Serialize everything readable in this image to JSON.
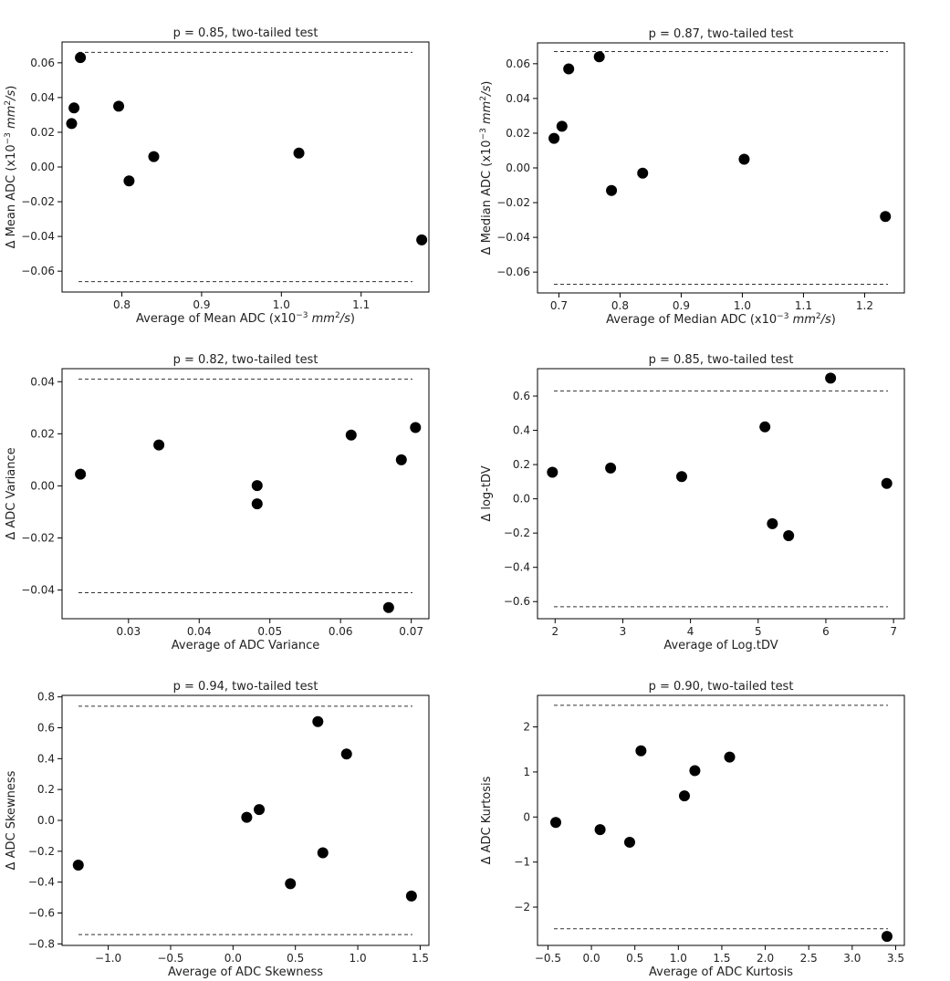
{
  "chart_data": [
    {
      "type": "scatter",
      "title": "p = 0.85, two-tailed test",
      "xlabel": "Average of Mean ADC (x10^-3 mm^2/s)",
      "ylabel": "Δ Mean ADC (x10^-3 mm^2/s)",
      "xlim": [
        0.725,
        1.185
      ],
      "ylim": [
        -0.072,
        0.072
      ],
      "xticks": [
        0.8,
        0.9,
        1.0,
        1.1
      ],
      "xtick_labels": [
        "0.8",
        "0.9",
        "1.0",
        "1.1"
      ],
      "yticks": [
        -0.06,
        -0.04,
        -0.02,
        0.0,
        0.02,
        0.04,
        0.06
      ],
      "ytick_labels": [
        "−0.06",
        "−0.04",
        "−0.02",
        "0.00",
        "0.02",
        "0.04",
        "0.06"
      ],
      "hlines": [
        0.066,
        -0.066
      ],
      "x": [
        0.737,
        0.74,
        0.748,
        0.796,
        0.809,
        0.84,
        1.022,
        1.176
      ],
      "y": [
        0.025,
        0.034,
        0.063,
        0.035,
        -0.008,
        0.006,
        0.008,
        -0.042
      ]
    },
    {
      "type": "scatter",
      "title": "p = 0.87, two-tailed test",
      "xlabel": "Average of Median ADC (x10^-3 mm^2/s)",
      "ylabel": "Δ Median ADC (x10^-3 mm^2/s)",
      "xlim": [
        0.665,
        1.265
      ],
      "ylim": [
        -0.072,
        0.072
      ],
      "xticks": [
        0.7,
        0.8,
        0.9,
        1.0,
        1.1,
        1.2
      ],
      "xtick_labels": [
        "0.7",
        "0.8",
        "0.9",
        "1.0",
        "1.1",
        "1.2"
      ],
      "yticks": [
        -0.06,
        -0.04,
        -0.02,
        0.0,
        0.02,
        0.04,
        0.06
      ],
      "ytick_labels": [
        "−0.06",
        "−0.04",
        "−0.02",
        "0.00",
        "0.02",
        "0.04",
        "0.06"
      ],
      "hlines": [
        0.067,
        -0.067
      ],
      "x": [
        0.692,
        0.705,
        0.716,
        0.766,
        0.786,
        0.837,
        1.003,
        1.234
      ],
      "y": [
        0.017,
        0.024,
        0.057,
        0.064,
        -0.013,
        -0.003,
        0.005,
        -0.028
      ]
    },
    {
      "type": "scatter",
      "title": "p = 0.82, two-tailed test",
      "xlabel": "Average of ADC Variance",
      "ylabel": "Δ ADC Variance",
      "xlim": [
        0.0206,
        0.0725
      ],
      "ylim": [
        -0.051,
        0.045
      ],
      "xticks": [
        0.03,
        0.04,
        0.05,
        0.06,
        0.07
      ],
      "xtick_labels": [
        "0.03",
        "0.04",
        "0.05",
        "0.06",
        "0.07"
      ],
      "yticks": [
        -0.04,
        -0.02,
        0.0,
        0.02,
        0.04
      ],
      "ytick_labels": [
        "−0.04",
        "−0.02",
        "0.00",
        "0.02",
        "0.04"
      ],
      "hlines": [
        0.041,
        -0.041
      ],
      "x": [
        0.0232,
        0.0343,
        0.0482,
        0.0482,
        0.0615,
        0.0668,
        0.0686,
        0.0706
      ],
      "y": [
        0.0045,
        0.0157,
        0.0001,
        -0.0069,
        0.0195,
        -0.0467,
        0.01,
        0.0224
      ]
    },
    {
      "type": "scatter",
      "title": "p = 0.85, two-tailed test",
      "xlabel": "Average of Log.tDV",
      "ylabel": "Δ log-tDV",
      "xlim": [
        1.74,
        7.16
      ],
      "ylim": [
        -0.7,
        0.76
      ],
      "xticks": [
        2,
        3,
        4,
        5,
        6,
        7
      ],
      "xtick_labels": [
        "2",
        "3",
        "4",
        "5",
        "6",
        "7"
      ],
      "yticks": [
        -0.6,
        -0.4,
        -0.2,
        0.0,
        0.2,
        0.4,
        0.6
      ],
      "ytick_labels": [
        "−0.6",
        "−0.4",
        "−0.2",
        "0.0",
        "0.2",
        "0.4",
        "0.6"
      ],
      "hlines": [
        0.63,
        -0.63
      ],
      "x": [
        1.96,
        2.82,
        3.87,
        5.1,
        5.21,
        5.45,
        6.07,
        6.9
      ],
      "y": [
        0.155,
        0.18,
        0.13,
        0.42,
        -0.145,
        -0.215,
        0.705,
        0.09
      ]
    },
    {
      "type": "scatter",
      "title": "p = 0.94, two-tailed test",
      "xlabel": "Average of ADC Skewness",
      "ylabel": "Δ ADC Skewness",
      "xlim": [
        -1.37,
        1.57
      ],
      "ylim": [
        -0.81,
        0.81
      ],
      "xticks": [
        -1.0,
        -0.5,
        0.0,
        0.5,
        1.0,
        1.5
      ],
      "xtick_labels": [
        "−1.0",
        "−0.5",
        "0.0",
        "0.5",
        "1.0",
        "1.5"
      ],
      "yticks": [
        -0.8,
        -0.6,
        -0.4,
        -0.2,
        0.0,
        0.2,
        0.4,
        0.6,
        0.8
      ],
      "ytick_labels": [
        "−0.8",
        "−0.6",
        "−0.4",
        "−0.2",
        "0.0",
        "0.2",
        "0.4",
        "0.6",
        "0.8"
      ],
      "hlines": [
        0.74,
        -0.74
      ],
      "x": [
        -1.24,
        0.11,
        0.21,
        0.46,
        0.68,
        0.72,
        0.91,
        1.43
      ],
      "y": [
        -0.29,
        0.02,
        0.07,
        -0.41,
        0.64,
        -0.21,
        0.43,
        -0.49
      ]
    },
    {
      "type": "scatter",
      "title": "p = 0.90, two-tailed test",
      "xlabel": "Average of ADC Kurtosis",
      "ylabel": "Δ ADC Kurtosis",
      "xlim": [
        -0.62,
        3.6
      ],
      "ylim": [
        -2.85,
        2.7
      ],
      "xticks": [
        -0.5,
        0.0,
        0.5,
        1.0,
        1.5,
        2.0,
        2.5,
        3.0,
        3.5
      ],
      "xtick_labels": [
        "−0.5",
        "0.0",
        "0.5",
        "1.0",
        "1.5",
        "2.0",
        "2.5",
        "3.0",
        "3.5"
      ],
      "yticks": [
        -2,
        -1,
        0,
        1,
        2
      ],
      "ytick_labels": [
        "−2",
        "−1",
        "0",
        "1",
        "2"
      ],
      "hlines": [
        2.48,
        -2.48
      ],
      "x": [
        -0.41,
        0.1,
        0.44,
        0.57,
        1.07,
        1.19,
        1.59,
        3.4
      ],
      "y": [
        -0.12,
        -0.28,
        -0.56,
        1.47,
        0.47,
        1.03,
        1.33,
        -2.65
      ]
    }
  ]
}
